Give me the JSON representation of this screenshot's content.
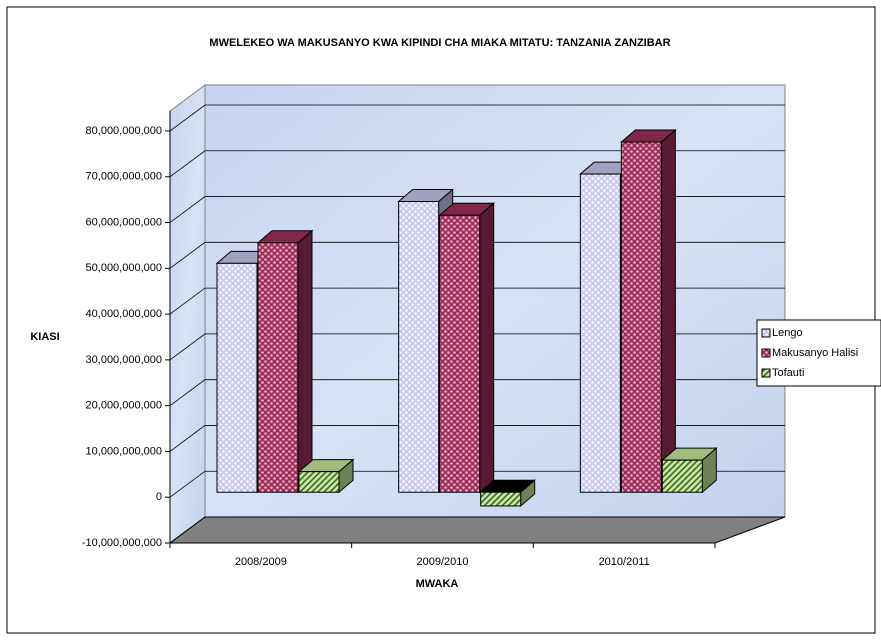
{
  "chart_data": {
    "type": "bar3d",
    "title": "MWELEKEO WA MAKUSANYO KWA KIPINDI CHA MIAKA MITATU: TANZANIA ZANZIBAR",
    "x_label": "MWAKA",
    "y_label": "KIASI",
    "categories": [
      "2008/2009",
      "2009/2010",
      "2010/2011"
    ],
    "series": [
      {
        "name": "Lengo",
        "color": "#c8c8f0",
        "values": [
          50000000000,
          63500000000,
          69500000000
        ]
      },
      {
        "name": "Makusanyo Halisi",
        "color": "#a0305a",
        "values": [
          54500000000,
          60500000000,
          76500000000
        ]
      },
      {
        "name": "Tofauti",
        "color": "#c8e8a0",
        "values": [
          4500000000,
          -3000000000,
          7000000000
        ]
      }
    ],
    "ylim": [
      -10000000000,
      80000000000
    ],
    "yticks": [
      {
        "value": -10000000000,
        "label": "-10,000,000,000"
      },
      0,
      {
        "value": 10000000000,
        "label": "10,000,000,000"
      },
      {
        "value": 20000000000,
        "label": "20,000,000,000"
      },
      {
        "value": 30000000000,
        "label": "30,000,000,000"
      },
      {
        "value": 40000000000,
        "label": "40,000,000,000"
      },
      {
        "value": 50000000000,
        "label": "50,000,000,000"
      },
      {
        "value": 60000000000,
        "label": "60,000,000,000"
      },
      {
        "value": 70000000000,
        "label": "70,000,000,000"
      },
      {
        "value": 80000000000,
        "label": "80,000,000,000"
      }
    ],
    "grid": true,
    "legend": "right"
  }
}
